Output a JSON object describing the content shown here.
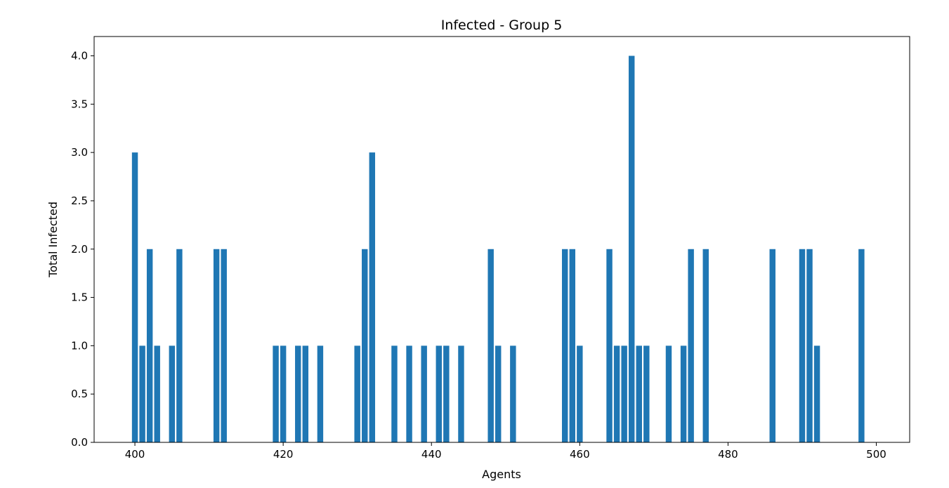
{
  "chart_data": {
    "type": "bar",
    "title": "Infected - Group 5",
    "xlabel": "Agents",
    "ylabel": "Total Infected",
    "xlim": [
      394.5,
      504.5
    ],
    "ylim": [
      0,
      4.2
    ],
    "xticks": [
      400,
      420,
      440,
      460,
      480,
      500
    ],
    "yticks": [
      0.0,
      0.5,
      1.0,
      1.5,
      2.0,
      2.5,
      3.0,
      3.5,
      4.0
    ],
    "bar_color": "#1f77b4",
    "grid": false,
    "legend": "none",
    "x": [
      400,
      401,
      402,
      403,
      405,
      406,
      411,
      412,
      419,
      420,
      422,
      423,
      425,
      430,
      431,
      432,
      435,
      437,
      439,
      441,
      442,
      444,
      448,
      449,
      451,
      458,
      459,
      460,
      464,
      465,
      466,
      467,
      468,
      469,
      472,
      474,
      475,
      477,
      486,
      490,
      491,
      492,
      498
    ],
    "values": [
      3,
      1,
      2,
      1,
      1,
      2,
      2,
      2,
      1,
      1,
      1,
      1,
      1,
      1,
      2,
      3,
      1,
      1,
      1,
      1,
      1,
      1,
      2,
      1,
      1,
      2,
      2,
      1,
      2,
      1,
      1,
      4,
      1,
      1,
      1,
      1,
      2,
      2,
      2,
      2,
      2,
      1,
      2
    ]
  }
}
